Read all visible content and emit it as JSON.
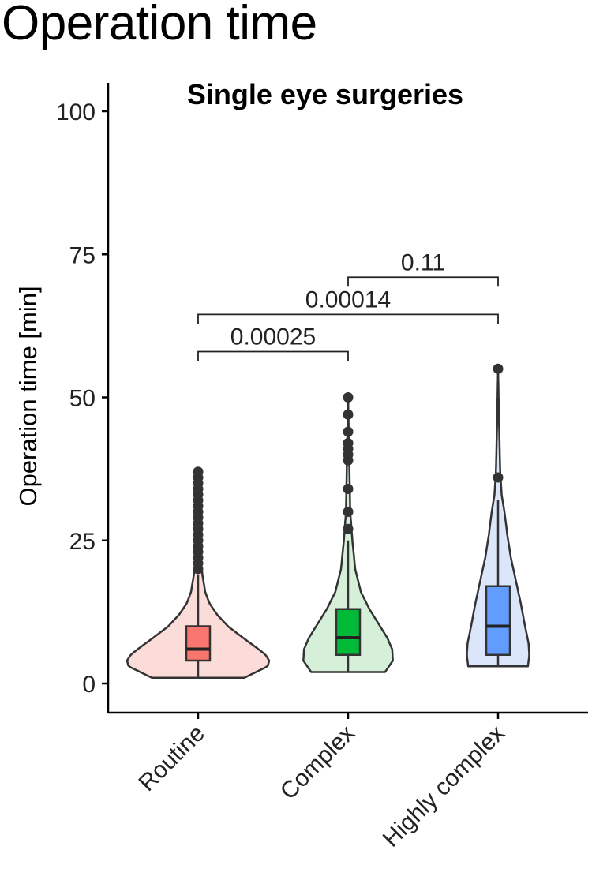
{
  "page": {
    "title": "Operation time"
  },
  "chart_data": {
    "type": "violin",
    "title": "Single eye surgeries",
    "xlabel": "",
    "ylabel": "Operation time [min]",
    "ylim": [
      -5,
      105
    ],
    "yticks": [
      0,
      25,
      50,
      75,
      100
    ],
    "grid": false,
    "legend": "none",
    "categories": [
      "Routine",
      "Complex",
      "Highly complex"
    ],
    "groups": [
      {
        "name": "Routine",
        "color": "#F8766D",
        "violin_fill": "#FCDCD8",
        "box": {
          "q1": 4,
          "median": 6,
          "q3": 10,
          "whisker_low": 1,
          "whisker_high": 19
        },
        "violin_range": [
          1,
          37
        ],
        "violin_profile": [
          [
            1,
            0.65
          ],
          [
            3,
            0.98
          ],
          [
            4,
            1.0
          ],
          [
            5,
            0.95
          ],
          [
            6,
            0.85
          ],
          [
            8,
            0.63
          ],
          [
            10,
            0.42
          ],
          [
            12,
            0.27
          ],
          [
            14,
            0.16
          ],
          [
            16,
            0.1
          ],
          [
            19,
            0.06
          ],
          [
            22,
            0.035
          ],
          [
            27,
            0.022
          ],
          [
            32,
            0.015
          ],
          [
            37,
            0.0
          ]
        ],
        "outliers": [
          20,
          21,
          22,
          23,
          24,
          25,
          26,
          27,
          28,
          29,
          30,
          31,
          32,
          33,
          34,
          35,
          36,
          37
        ]
      },
      {
        "name": "Complex",
        "color": "#00BA38",
        "violin_fill": "#D5EFD9",
        "box": {
          "q1": 5,
          "median": 8,
          "q3": 13,
          "whisker_low": 2,
          "whisker_high": 25
        },
        "violin_range": [
          2,
          50
        ],
        "violin_profile": [
          [
            2,
            0.52
          ],
          [
            4,
            0.63
          ],
          [
            6,
            0.62
          ],
          [
            8,
            0.55
          ],
          [
            10,
            0.45
          ],
          [
            13,
            0.3
          ],
          [
            16,
            0.18
          ],
          [
            20,
            0.1
          ],
          [
            25,
            0.06
          ],
          [
            30,
            0.03
          ],
          [
            40,
            0.015
          ],
          [
            50,
            0.0
          ]
        ],
        "outliers": [
          27,
          30,
          34,
          39,
          40,
          41,
          42,
          44,
          47,
          50
        ]
      },
      {
        "name": "Highly complex",
        "color": "#619CFF",
        "violin_fill": "#DCE6FA",
        "box": {
          "q1": 5,
          "median": 10,
          "q3": 17,
          "whisker_low": 3,
          "whisker_high": 32
        },
        "violin_range": [
          3,
          55
        ],
        "violin_profile": [
          [
            3,
            0.42
          ],
          [
            5,
            0.44
          ],
          [
            7,
            0.43
          ],
          [
            10,
            0.38
          ],
          [
            14,
            0.32
          ],
          [
            18,
            0.25
          ],
          [
            22,
            0.18
          ],
          [
            26,
            0.13
          ],
          [
            30,
            0.09
          ],
          [
            33,
            0.05
          ],
          [
            37,
            0.03
          ],
          [
            45,
            0.015
          ],
          [
            55,
            0.0
          ]
        ],
        "outliers": [
          36,
          55
        ]
      }
    ],
    "comparisons": [
      {
        "from": "Routine",
        "to": "Complex",
        "y": 58,
        "label": "0.00025"
      },
      {
        "from": "Routine",
        "to": "Highly complex",
        "y": 64.5,
        "label": "0.00014"
      },
      {
        "from": "Complex",
        "to": "Highly complex",
        "y": 71,
        "label": "0.11"
      }
    ]
  }
}
